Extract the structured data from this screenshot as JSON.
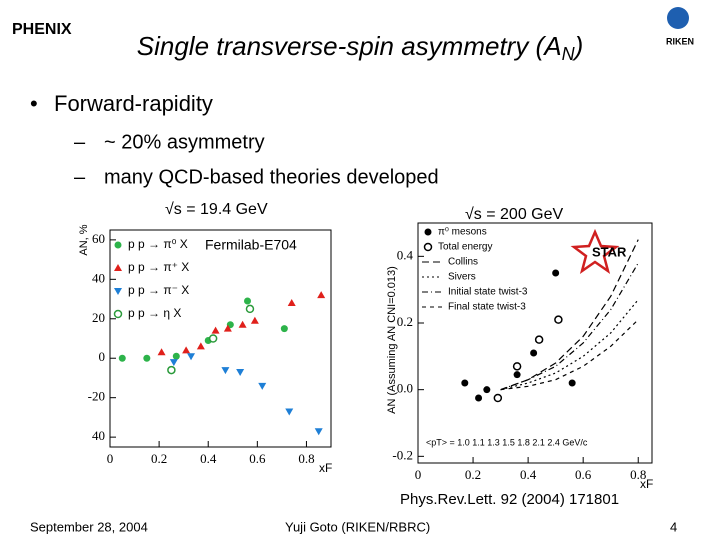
{
  "header": {
    "logo_left": "PHENIX",
    "title": [
      "Single transverse-spin asymmetry (A",
      "N",
      ")"
    ],
    "logo_right": "RIKEN"
  },
  "bullets": [
    {
      "text": "Forward-rapidity",
      "sub": [
        "~ 20% asymmetry",
        "many QCD-based theories developed"
      ]
    }
  ],
  "chart_data": [
    {
      "type": "scatter",
      "subtitle": "√s = 19.4 GeV",
      "annotation": "Fermilab-E704",
      "ylabel": "AN, %",
      "xlabel": "xF",
      "xlim": [
        0,
        0.9
      ],
      "ylim": [
        -45,
        65
      ],
      "xticks": [
        0,
        0.2,
        0.4,
        0.6,
        0.8
      ],
      "yticks": [
        60,
        40,
        20,
        0,
        -20,
        {
          "value": -40,
          "label": "40"
        }
      ],
      "series": [
        {
          "name": "p p → π⁰ X",
          "color": "#2db34a",
          "marker": "circle",
          "x": [
            0.05,
            0.15,
            0.27,
            0.4,
            0.49,
            0.56,
            0.71
          ],
          "values": [
            0,
            0,
            1,
            9,
            17,
            29,
            15
          ]
        },
        {
          "name": "p p → π⁺ X",
          "color": "#e0201b",
          "marker": "triangle",
          "x": [
            0.21,
            0.31,
            0.37,
            0.43,
            0.48,
            0.54,
            0.59,
            0.74,
            0.86
          ],
          "values": [
            3,
            4,
            6,
            14,
            15,
            17,
            19,
            28,
            32
          ]
        },
        {
          "name": "p p → π⁻ X",
          "color": "#1e7fd6",
          "marker": "triangle-down",
          "x": [
            0.26,
            0.33,
            0.47,
            0.53,
            0.62,
            0.73,
            0.85
          ],
          "values": [
            -2,
            1,
            -6,
            -7,
            -14,
            -27,
            -37
          ]
        },
        {
          "name": "p p → η X",
          "color": "#2a9a3a",
          "marker": "open-circle",
          "x": [
            0.25,
            0.42,
            0.57
          ],
          "values": [
            -6,
            10,
            25
          ]
        }
      ]
    },
    {
      "type": "scatter",
      "subtitle": "√s = 200 GeV",
      "logo": "STAR",
      "ylabel": "AN (Assuming AN CNI=0.013)",
      "xlabel": "xF",
      "annotation": "<pT> = 1.0 1.1 1.3 1.5 1.8 2.1 2.4 GeV/c",
      "xlim": [
        0,
        0.85
      ],
      "ylim": [
        -0.22,
        0.5
      ],
      "xticks": [
        0,
        0.2,
        0.4,
        0.6,
        0.8
      ],
      "yticks": [
        {
          "value": -0.2,
          "label": "-0.2"
        },
        {
          "value": 0,
          "label": "0.0"
        },
        0.2,
        0.4
      ],
      "series": [
        {
          "name": "π⁰ mesons",
          "color": "#000000",
          "marker": "circle",
          "x": [
            0.17,
            0.22,
            0.25,
            0.36,
            0.42,
            0.5,
            0.56
          ],
          "values": [
            0.02,
            -0.025,
            0,
            0.045,
            0.11,
            0.35,
            0.02
          ]
        },
        {
          "name": "Total energy",
          "color": "#000000",
          "marker": "open-circle",
          "x": [
            0.29,
            0.36,
            0.44,
            0.51
          ],
          "values": [
            -0.025,
            0.07,
            0.15,
            0.21
          ]
        },
        {
          "name": "Collins",
          "color": "#000000",
          "marker": "line",
          "dash": "7,4",
          "x": [
            0.3,
            0.4,
            0.5,
            0.6,
            0.7,
            0.8
          ],
          "values": [
            0,
            0.03,
            0.08,
            0.16,
            0.28,
            0.45
          ]
        },
        {
          "name": "Sivers",
          "color": "#000000",
          "marker": "line",
          "dash": "2,3",
          "x": [
            0.3,
            0.4,
            0.5,
            0.6,
            0.7,
            0.8
          ],
          "values": [
            0,
            0.02,
            0.05,
            0.1,
            0.17,
            0.27
          ]
        },
        {
          "name": "Initial state twist-3",
          "color": "#000000",
          "marker": "line",
          "dash": "6,3,1,3",
          "x": [
            0.3,
            0.4,
            0.5,
            0.6,
            0.7,
            0.8
          ],
          "values": [
            0,
            0.03,
            0.07,
            0.14,
            0.24,
            0.38
          ]
        },
        {
          "name": "Final state twist-3",
          "color": "#000000",
          "marker": "line",
          "dash": "4,4",
          "x": [
            0.3,
            0.4,
            0.5,
            0.6,
            0.7,
            0.8
          ],
          "values": [
            0,
            0.01,
            0.03,
            0.07,
            0.13,
            0.21
          ]
        }
      ]
    }
  ],
  "reference": "Phys.Rev.Lett. 92 (2004) 171801",
  "footer": {
    "date": "September 28, 2004",
    "author": "Yuji Goto (RIKEN/RBRC)",
    "page": "4"
  }
}
